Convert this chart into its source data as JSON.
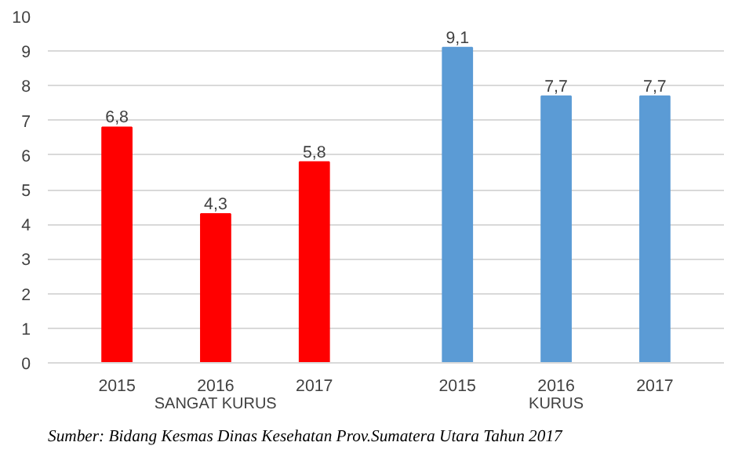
{
  "chart_data": {
    "type": "bar",
    "categories": [
      "2015",
      "2016",
      "2017",
      "2015",
      "2016",
      "2017"
    ],
    "series": [
      {
        "name": "SANGAT KURUS",
        "color": "#ff0000",
        "values": [
          6.8,
          4.3,
          5.8,
          null,
          null,
          null
        ],
        "value_labels": [
          "6,8",
          "4,3",
          "5,8",
          null,
          null,
          null
        ]
      },
      {
        "name": "KURUS",
        "color": "#5b9bd5",
        "values": [
          null,
          null,
          null,
          9.1,
          7.7,
          7.7
        ],
        "value_labels": [
          null,
          null,
          null,
          "9,1",
          "7,7",
          "7,7"
        ]
      }
    ],
    "ylim": [
      0,
      10
    ],
    "yticks": [
      0,
      1,
      2,
      3,
      4,
      5,
      6,
      7,
      8,
      9,
      10
    ],
    "grid": "y",
    "annotations": [
      "Sumber: Bidang Kesmas Dinas Kesehatan Prov.Sumatera Utara Tahun 2017"
    ]
  }
}
